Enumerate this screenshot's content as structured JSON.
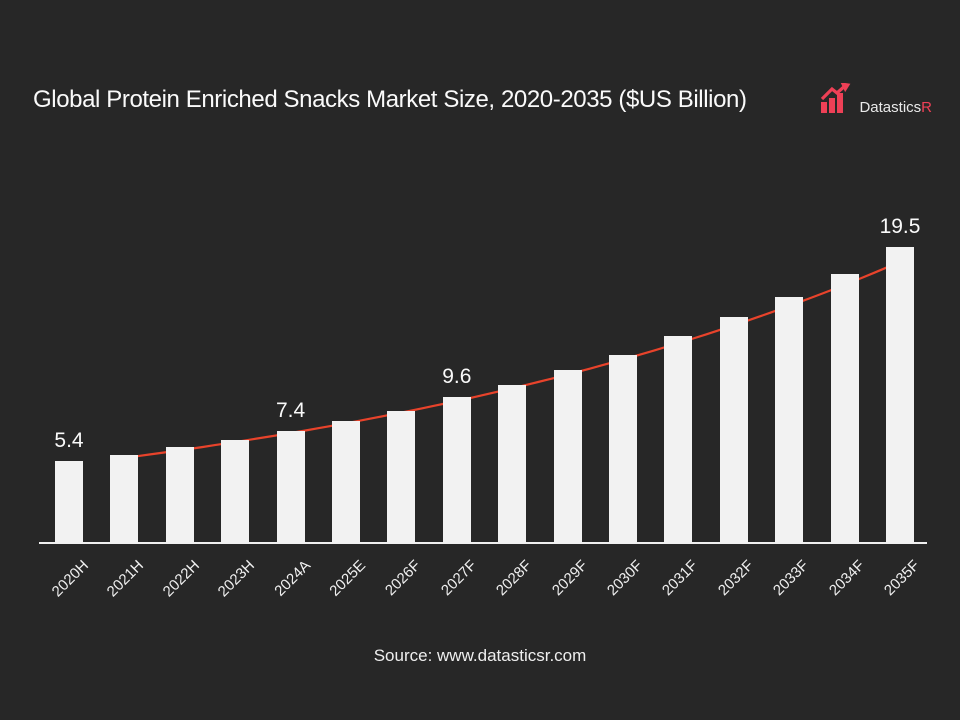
{
  "slide": {
    "background": "#272727"
  },
  "title": {
    "text": "Global Protein Enriched Snacks Market Size, 2020-2035 ($US Billion)"
  },
  "logo": {
    "name": "Datastics",
    "suffix": "R",
    "icon": "rising-bar-chart-arrow-icon",
    "accent_color": "#ee4056"
  },
  "source": {
    "text": "Source: www.datasticsr.com"
  },
  "chart_data": {
    "type": "bar",
    "title": "Global Protein Enriched Snacks Market Size, 2020-2035 ($US Billion)",
    "categories": [
      "2020H",
      "2021H",
      "2022H",
      "2023H",
      "2024A",
      "2025E",
      "2026F",
      "2027F",
      "2028F",
      "2029F",
      "2030F",
      "2031F",
      "2032F",
      "2033F",
      "2034F",
      "2035F"
    ],
    "values": [
      5.4,
      5.8,
      6.3,
      6.8,
      7.4,
      8.0,
      8.7,
      9.6,
      10.4,
      11.4,
      12.4,
      13.6,
      14.9,
      16.2,
      17.7,
      19.5
    ],
    "data_labels": [
      {
        "index": 0,
        "text": "5.4"
      },
      {
        "index": 4,
        "text": "7.4"
      },
      {
        "index": 7,
        "text": "9.6"
      },
      {
        "index": 15,
        "text": "19.5"
      }
    ],
    "ylim": [
      0,
      22
    ],
    "grid": false,
    "legend": "none",
    "bar_color": "#f2f2f2",
    "axis_color": "#f0f0f0",
    "label_color": "#fafafa",
    "tick_label_color": "#f0f0f0",
    "trendline": {
      "shape": "exponential",
      "color": "#e8432b",
      "start_index": 1,
      "end_index": 15,
      "start_value": 5.6,
      "end_value": 18.5
    }
  }
}
